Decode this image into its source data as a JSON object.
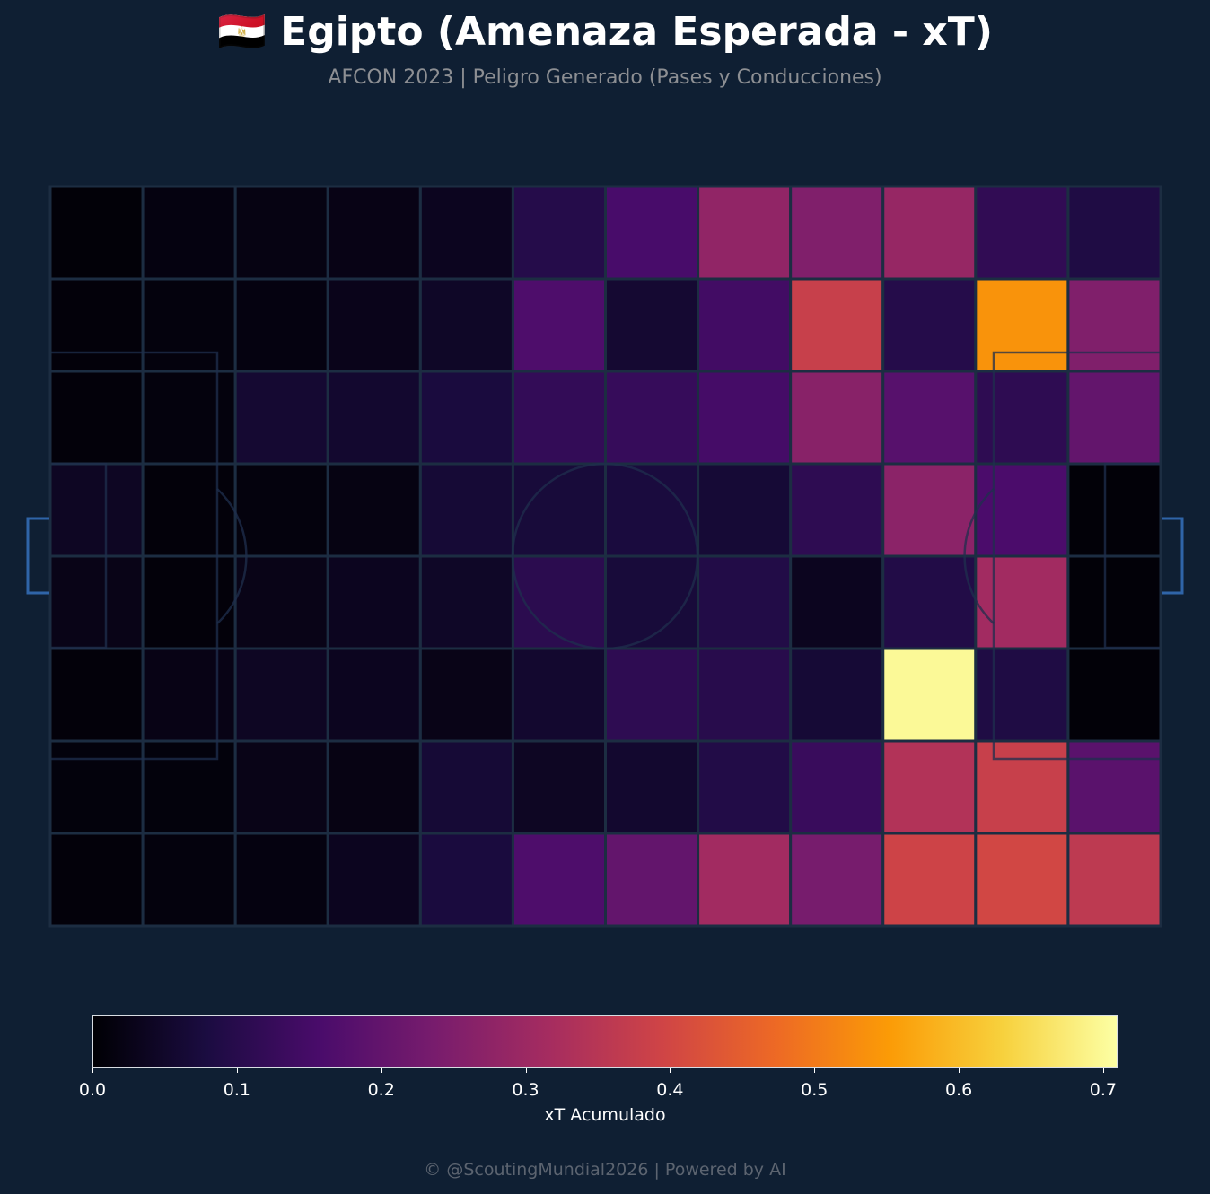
{
  "title": "🇪🇬 Egipto (Amenaza Esperada - xT)",
  "subtitle": "AFCON 2023 | Peligro Generado (Pases y Conducciones)",
  "footer": "© @ScoutingMundial2026 | Powered by AI",
  "colors": {
    "background": "#0f1f33",
    "pitch_lines": "#1c2d42",
    "goal": "#2f64a8",
    "colormap": [
      "#000004",
      "#1b0c41",
      "#4a0c6b",
      "#781c6d",
      "#a52c60",
      "#cf4446",
      "#ed6925",
      "#fb9b06",
      "#f7d13d",
      "#fcffa4"
    ]
  },
  "chart_data": {
    "type": "heatmap",
    "rows": 8,
    "cols": 12,
    "values": [
      [
        0.005,
        0.015,
        0.018,
        0.022,
        0.035,
        0.095,
        0.155,
        0.28,
        0.25,
        0.29,
        0.115,
        0.085
      ],
      [
        0.008,
        0.012,
        0.015,
        0.028,
        0.045,
        0.165,
        0.06,
        0.145,
        0.38,
        0.095,
        0.54,
        0.25
      ],
      [
        0.008,
        0.012,
        0.06,
        0.055,
        0.075,
        0.12,
        0.125,
        0.15,
        0.265,
        0.18,
        0.11,
        0.2
      ],
      [
        0.04,
        0.008,
        0.012,
        0.018,
        0.065,
        0.07,
        0.075,
        0.065,
        0.11,
        0.27,
        0.16,
        0.005
      ],
      [
        0.025,
        0.008,
        0.025,
        0.035,
        0.045,
        0.105,
        0.07,
        0.09,
        0.035,
        0.09,
        0.31,
        0.005
      ],
      [
        0.008,
        0.022,
        0.04,
        0.035,
        0.025,
        0.055,
        0.11,
        0.1,
        0.065,
        0.7,
        0.085,
        0.005
      ],
      [
        0.01,
        0.01,
        0.025,
        0.02,
        0.065,
        0.04,
        0.055,
        0.09,
        0.13,
        0.34,
        0.38,
        0.185
      ],
      [
        0.008,
        0.012,
        0.015,
        0.035,
        0.075,
        0.165,
        0.2,
        0.31,
        0.235,
        0.39,
        0.4,
        0.36
      ]
    ],
    "colorbar": {
      "label": "xT Acumulado",
      "range": [
        0,
        0.71
      ],
      "ticks": [
        "0.0",
        "0.1",
        "0.2",
        "0.3",
        "0.4",
        "0.5",
        "0.6",
        "0.7"
      ],
      "colormap": "inferno"
    }
  }
}
